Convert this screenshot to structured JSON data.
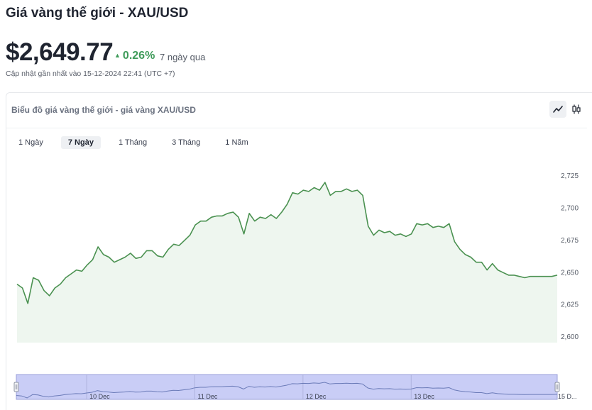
{
  "header": {
    "title": "Giá vàng thế giới - XAU/USD",
    "price": "$2,649.77",
    "change": "0.26%",
    "period": "7 ngày qua",
    "updated": "Cập nhật gần nhất vào 15-12-2024 22:41 (UTC +7)"
  },
  "card": {
    "title": "Biểu đồ giá vàng thế giới - giá vàng XAU/USD",
    "toggles": {
      "line": "line-chart-icon",
      "candle": "candlestick-icon",
      "active": "line"
    }
  },
  "tabs": [
    {
      "label": "1 Ngày",
      "active": false
    },
    {
      "label": "7 Ngày",
      "active": true
    },
    {
      "label": "1 Tháng",
      "active": false
    },
    {
      "label": "3 Tháng",
      "active": false
    },
    {
      "label": "1 Năm",
      "active": false
    }
  ],
  "colors": {
    "line": "#4a9150",
    "area": "#eef6ef",
    "navigator_fill": "#c9cdf6",
    "up": "#3f9b5a"
  },
  "chart_data": {
    "type": "area",
    "title": "",
    "xlabel": "",
    "ylabel": "",
    "ylim": [
      2600,
      2735
    ],
    "y_ticks": [
      "2,600",
      "2,625",
      "2,650",
      "2,675",
      "2,700",
      "2,725"
    ],
    "y_tick_values": [
      2600,
      2625,
      2650,
      2675,
      2700,
      2725
    ],
    "grid": false,
    "legend": "none",
    "series": [
      {
        "x": [
          0,
          0.5,
          1,
          1.5,
          2,
          2.5,
          3,
          3.5,
          4,
          4.5,
          5,
          5.5,
          6,
          6.5,
          7,
          7.5,
          8,
          8.5,
          9,
          9.5,
          10,
          10.5,
          11,
          11.5,
          12,
          12.5,
          13,
          13.5,
          14,
          14.5,
          15,
          15.5,
          16,
          16.5,
          17,
          17.5,
          18,
          18.5,
          19,
          19.5,
          20,
          20.5,
          21,
          21.5,
          22,
          22.5,
          23,
          23.5,
          24,
          24.5,
          25,
          25.5,
          26,
          26.5,
          27,
          27.5,
          28,
          28.5,
          29,
          29.5,
          30,
          30.5,
          31,
          31.5,
          32,
          32.5,
          33,
          33.5,
          34,
          34.5,
          35,
          35.5,
          36,
          36.5,
          37,
          37.5,
          38,
          38.5,
          39,
          39.5,
          40,
          40.5,
          41,
          41.5,
          42,
          42.5,
          43,
          43.5,
          44,
          44.5,
          45,
          45.5,
          46,
          46.5,
          47,
          47.5,
          48,
          48.5,
          49,
          49.5,
          50
        ],
        "values": [
          2641,
          2638,
          2626,
          2646,
          2644,
          2636,
          2632,
          2638,
          2641,
          2646,
          2649,
          2652,
          2651,
          2656,
          2660,
          2670,
          2664,
          2662,
          2658,
          2660,
          2662,
          2665,
          2661,
          2662,
          2667,
          2667,
          2663,
          2662,
          2668,
          2672,
          2671,
          2675,
          2679,
          2687,
          2690,
          2690,
          2693,
          2694,
          2694,
          2696,
          2697,
          2693,
          2680,
          2696,
          2690,
          2693,
          2692,
          2695,
          2692,
          2697,
          2703,
          2712,
          2711,
          2714,
          2713,
          2716,
          2714,
          2720,
          2710,
          2713,
          2713,
          2715,
          2713,
          2714,
          2710,
          2686,
          2679,
          2683,
          2681,
          2682,
          2679,
          2680,
          2678,
          2680,
          2688,
          2687,
          2688,
          2685,
          2686,
          2685,
          2688,
          2674,
          2668,
          2664,
          2662,
          2658,
          2658,
          2652,
          2657,
          2652,
          2650,
          2648,
          2648,
          2647,
          2646,
          2647,
          2647,
          2647,
          2647,
          2647,
          2648
        ]
      }
    ],
    "navigator": {
      "x_labels": [
        "10 Dec",
        "11 Dec",
        "12 Dec",
        "13 Dec",
        "15 D..."
      ],
      "x_label_positions": [
        6.5,
        16.5,
        26.5,
        36.5,
        50
      ]
    }
  }
}
